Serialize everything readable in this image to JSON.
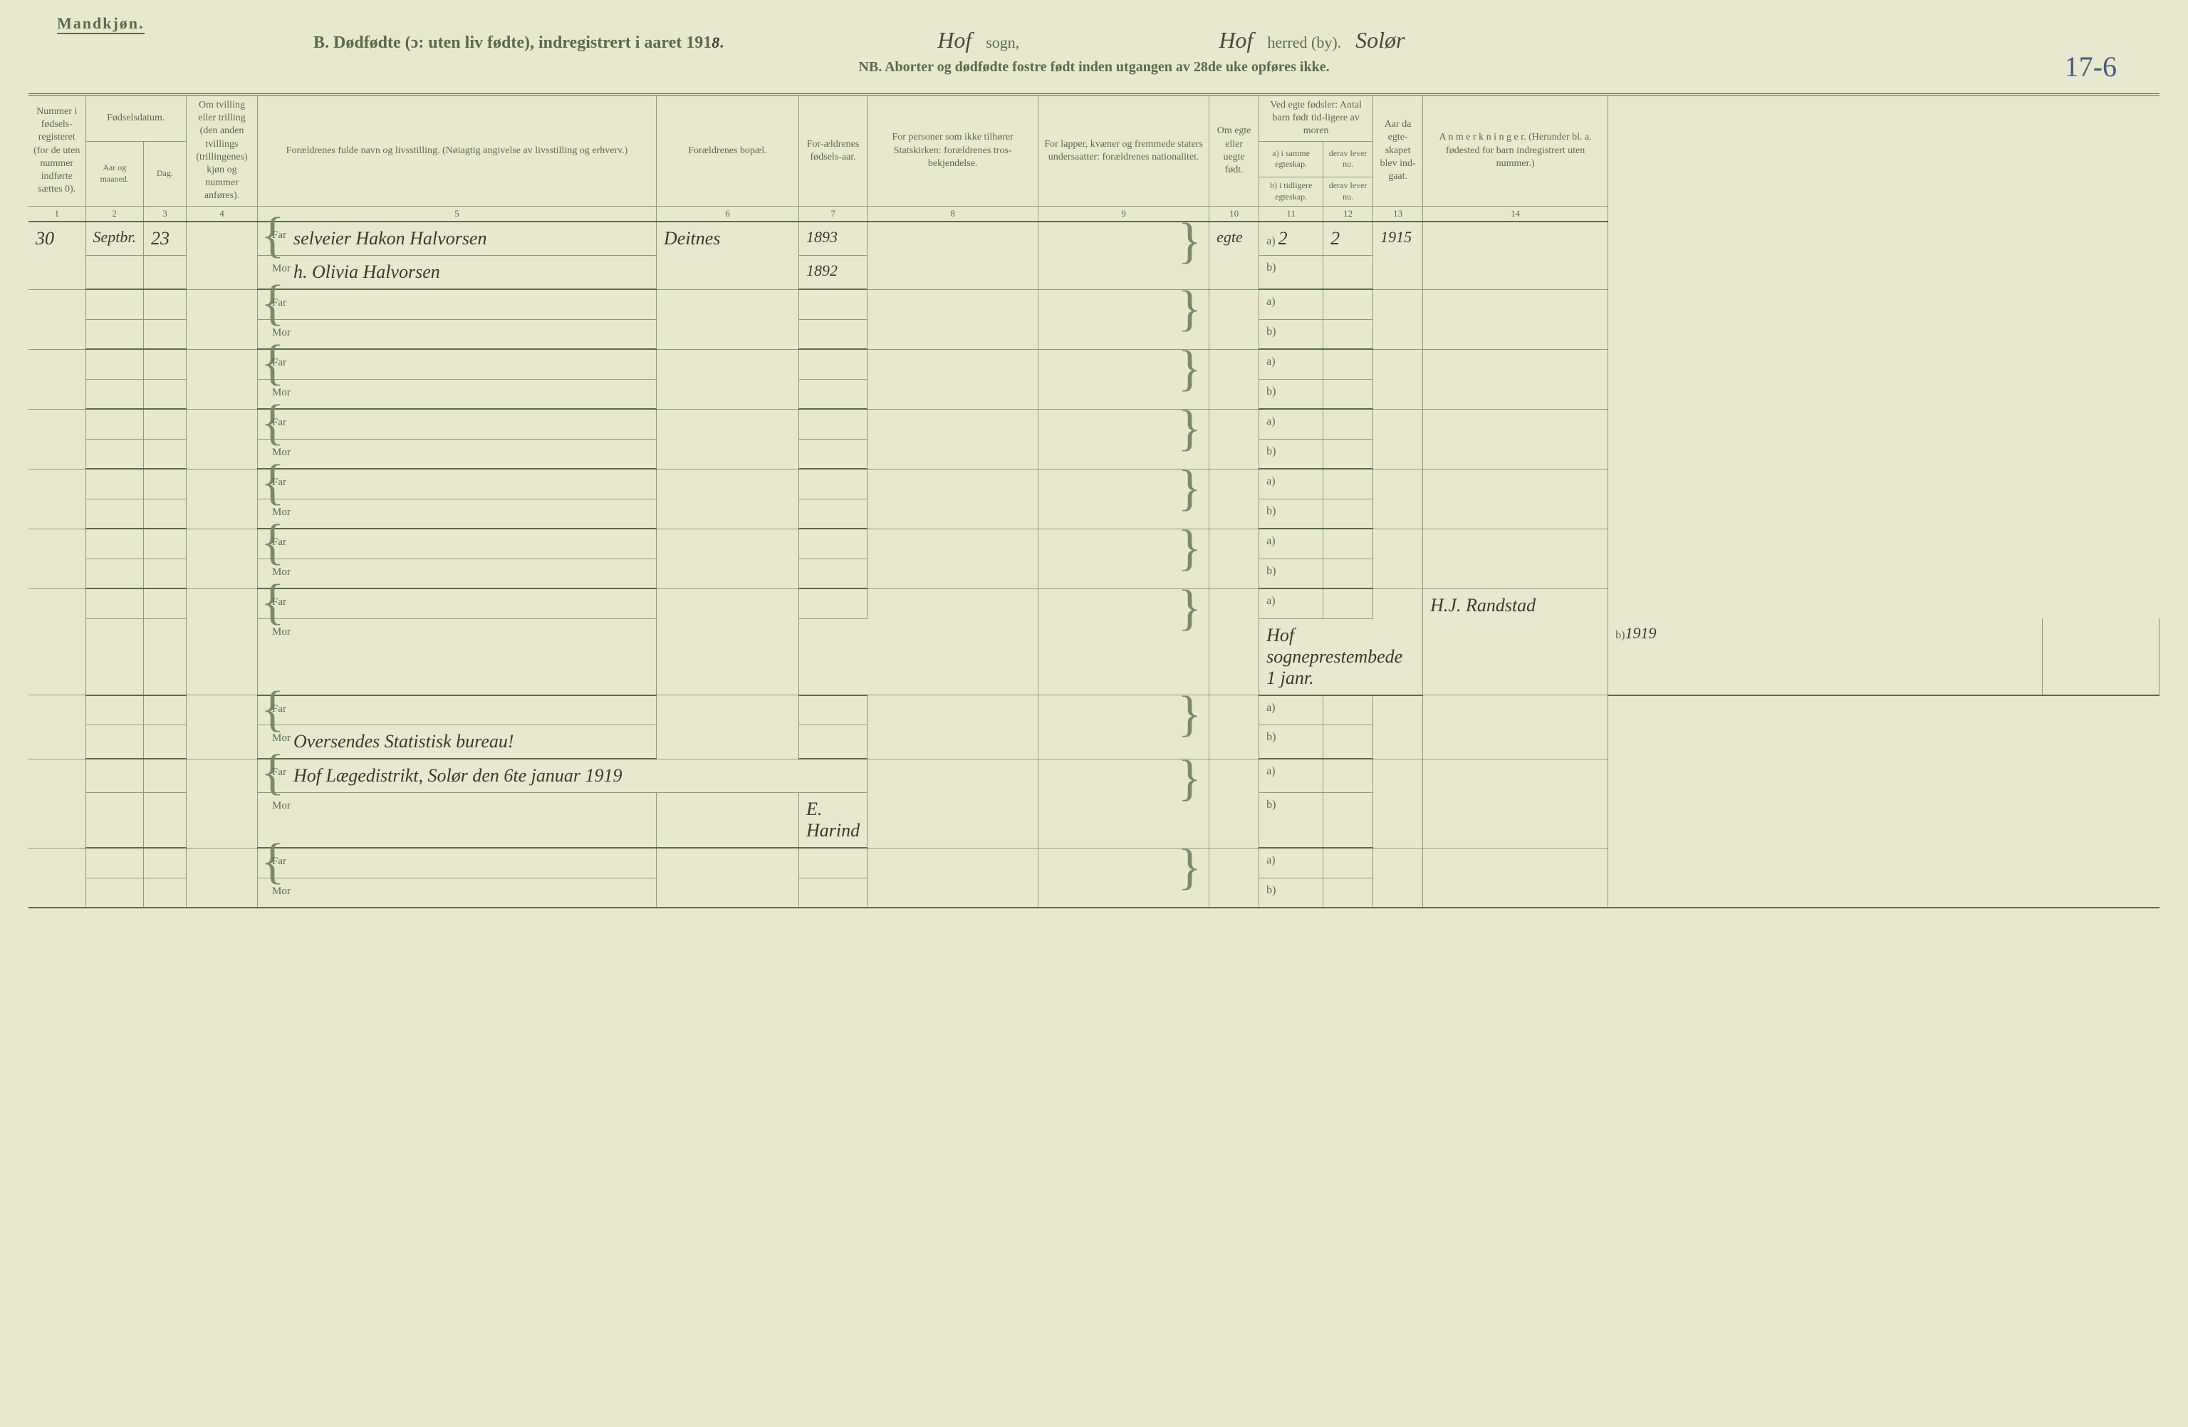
{
  "header": {
    "mandkjon": "Mandkjøn.",
    "title": "B. Dødfødte (ɔ: uten liv fødte), indregistrert i aaret 191",
    "year_suffix": "8",
    "period": ".",
    "sogn_hw": "Hof",
    "sogn_label": "sogn,",
    "herred_hw": "Hof",
    "herred_label": "herred (by).",
    "herred_hw2": "Solør",
    "nb": "NB.  Aborter og dødfødte fostre født inden utgangen av 28de uke opføres ikke.",
    "page_num": "17-6"
  },
  "columns": {
    "h1": "Nummer i fødsels-registeret (for de uten nummer indførte sættes 0).",
    "h2_top": "Fødselsdatum.",
    "h2a": "Aar og maaned.",
    "h2b": "Dag.",
    "h4": "Om tvilling eller trilling (den anden tvillings (trillingenes) kjøn og nummer anføres).",
    "h5": "Forældrenes fulde navn og livsstilling. (Nøiagtig angivelse av livsstilling og erhverv.)",
    "h6": "Forældrenes bopæl.",
    "h7": "For-ældrenes fødsels-aar.",
    "h8": "For personer som ikke tilhører Statskirken: forældrenes tros-bekjendelse.",
    "h9": "For lapper, kvæner og fremmede staters undersaatter: forældrenes nationalitet.",
    "h10": "Om egte eller uegte født.",
    "h11_top": "Ved egte fødsler: Antal barn født tid-ligere av moren",
    "h11a": "a) i samme egteskap.",
    "h11b": "b) i tidligere egteskap.",
    "h12a": "derav lever nu.",
    "h12b": "derav lever nu.",
    "h13": "Aar da egte-skapet blev ind-gaat.",
    "h14": "A n m e r k n i n g e r. (Herunder bl. a. fødested for barn indregistrert uten nummer.)",
    "n1": "1",
    "n2": "2",
    "n3": "3",
    "n4": "4",
    "n5": "5",
    "n6": "6",
    "n7": "7",
    "n8": "8",
    "n9": "9",
    "n10": "10",
    "n11": "11",
    "n12": "12",
    "n13": "13",
    "n14": "14"
  },
  "labels": {
    "far": "Far",
    "mor": "Mor",
    "a": "a)",
    "b": "b)"
  },
  "rows": [
    {
      "num": "30",
      "month": "Septbr.",
      "day": "23",
      "far_text": "selveier Hakon Halvorsen",
      "mor_text": "h. Olivia Halvorsen",
      "bopael": "Deitnes",
      "far_year": "1893",
      "mor_year": "1892",
      "egte": "egte",
      "a_val": "2",
      "lever_a": "2",
      "egteskap_aar": "1915"
    },
    {
      "blank": true
    },
    {
      "blank": true
    },
    {
      "blank": true
    },
    {
      "blank": true
    },
    {
      "blank": true
    },
    {
      "mor_note": "Hof sogneprestembede 1 janr.",
      "b_val": "1919",
      "anm": "H.J. Randstad"
    },
    {
      "mor_text2": "Oversendes Statistisk bureau!"
    },
    {
      "far_text2": "Hof Lægedistrikt, Solør den 6te januar 1919",
      "mor_sig": "E. Harind"
    },
    {
      "blank": true
    }
  ]
}
